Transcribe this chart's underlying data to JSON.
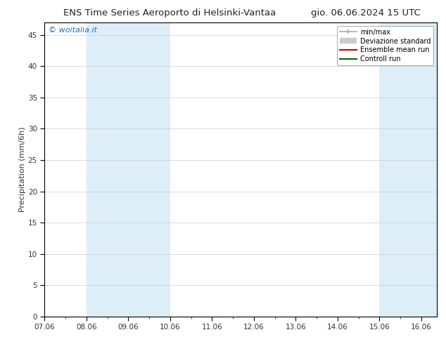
{
  "title_left": "ENS Time Series Aeroporto di Helsinki-Vantaa",
  "title_right": "gio. 06.06.2024 15 UTC",
  "ylabel": "Precipitation (mm/6h)",
  "ylim": [
    0,
    47
  ],
  "yticks": [
    0,
    5,
    10,
    15,
    20,
    25,
    30,
    35,
    40,
    45
  ],
  "xlim_start": 0.0,
  "xlim_end": 9.375,
  "xtick_labels": [
    "07.06",
    "08.06",
    "09.06",
    "10.06",
    "11.06",
    "12.06",
    "13.06",
    "14.06",
    "15.06",
    "16.06"
  ],
  "xtick_positions": [
    0,
    1,
    2,
    3,
    4,
    5,
    6,
    7,
    8,
    9
  ],
  "shaded_bands": [
    {
      "x_start": 1.0,
      "x_end": 3.0
    },
    {
      "x_start": 8.0,
      "x_end": 9.375
    }
  ],
  "band_color": "#ddeef8",
  "watermark_text": "© woitalia.it",
  "watermark_color": "#1a6eb5",
  "legend_entries": [
    {
      "label": "min/max"
    },
    {
      "label": "Deviazione standard"
    },
    {
      "label": "Ensemble mean run",
      "color": "#cc0000"
    },
    {
      "label": "Controll run",
      "color": "#006600"
    }
  ],
  "minmax_color": "#aaaaaa",
  "devstd_color": "#cccccc",
  "background_color": "#ffffff",
  "plot_bg_color": "#ffffff",
  "grid_color": "#cccccc",
  "title_fontsize": 9.5,
  "tick_fontsize": 7.5,
  "ylabel_fontsize": 8,
  "legend_fontsize": 7
}
